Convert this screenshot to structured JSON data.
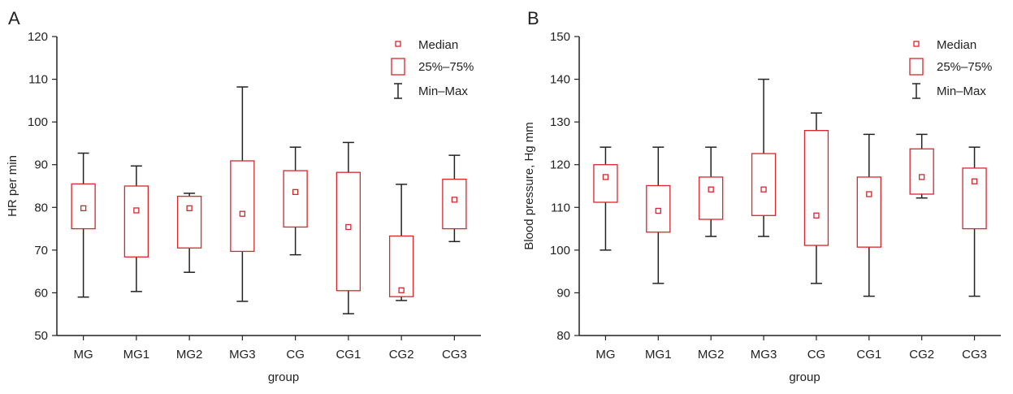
{
  "colors": {
    "box": "#d9252b",
    "whisker": "#222222",
    "axis": "#222222",
    "text": "#222222"
  },
  "legend": {
    "median_label": "Median",
    "box_label": "25%–75%",
    "range_label": "Min–Max"
  },
  "chart_data": [
    {
      "panel_label": "A",
      "type": "boxplot",
      "xlabel": "group",
      "ylabel": "HR per min",
      "ylim": [
        50,
        120
      ],
      "yticks": [
        50,
        60,
        70,
        80,
        90,
        100,
        110,
        120
      ],
      "categories": [
        "MG",
        "MG1",
        "MG2",
        "MG3",
        "CG",
        "CG1",
        "CG2",
        "CG3"
      ],
      "series": [
        {
          "min": 59,
          "q1": 75,
          "median": 79.8,
          "q3": 85.5,
          "max": 92.7
        },
        {
          "min": 60.3,
          "q1": 68.4,
          "median": 79.3,
          "q3": 85,
          "max": 89.7
        },
        {
          "min": 64.8,
          "q1": 70.5,
          "median": 79.8,
          "q3": 82.6,
          "max": 83.3
        },
        {
          "min": 58,
          "q1": 69.7,
          "median": 78.5,
          "q3": 90.9,
          "max": 108.2
        },
        {
          "min": 68.9,
          "q1": 75.4,
          "median": 83.6,
          "q3": 88.6,
          "max": 94.1
        },
        {
          "min": 55.1,
          "q1": 60.5,
          "median": 75.4,
          "q3": 88.2,
          "max": 95.2
        },
        {
          "min": 58.2,
          "q1": 59.1,
          "median": 60.6,
          "q3": 73.3,
          "max": 85.4
        },
        {
          "min": 72,
          "q1": 75,
          "median": 81.8,
          "q3": 86.6,
          "max": 92.2
        }
      ],
      "legend_position": "top-right",
      "grid": false
    },
    {
      "panel_label": "B",
      "type": "boxplot",
      "xlabel": "group",
      "ylabel": "Blood pressure, Hg mm",
      "ylim": [
        80,
        150
      ],
      "yticks": [
        80,
        90,
        100,
        110,
        120,
        130,
        140,
        150
      ],
      "categories": [
        "MG",
        "MG1",
        "MG2",
        "MG3",
        "CG",
        "CG1",
        "CG2",
        "CG3"
      ],
      "series": [
        {
          "min": 100,
          "q1": 111.2,
          "median": 117.1,
          "q3": 120,
          "max": 124.1
        },
        {
          "min": 92.2,
          "q1": 104.2,
          "median": 109.2,
          "q3": 115.1,
          "max": 124.1
        },
        {
          "min": 103.2,
          "q1": 107.2,
          "median": 114.2,
          "q3": 117.1,
          "max": 124.1
        },
        {
          "min": 103.2,
          "q1": 108.1,
          "median": 114.2,
          "q3": 122.6,
          "max": 140
        },
        {
          "min": 92.2,
          "q1": 101.1,
          "median": 108.1,
          "q3": 128,
          "max": 132.1
        },
        {
          "min": 89.2,
          "q1": 100.7,
          "median": 113.1,
          "q3": 117.1,
          "max": 127.1
        },
        {
          "min": 112.2,
          "q1": 113.1,
          "median": 117.1,
          "q3": 123.7,
          "max": 127.1
        },
        {
          "min": 89.2,
          "q1": 105,
          "median": 116.1,
          "q3": 119.2,
          "max": 124.1
        }
      ],
      "legend_position": "top-right",
      "grid": false
    }
  ]
}
